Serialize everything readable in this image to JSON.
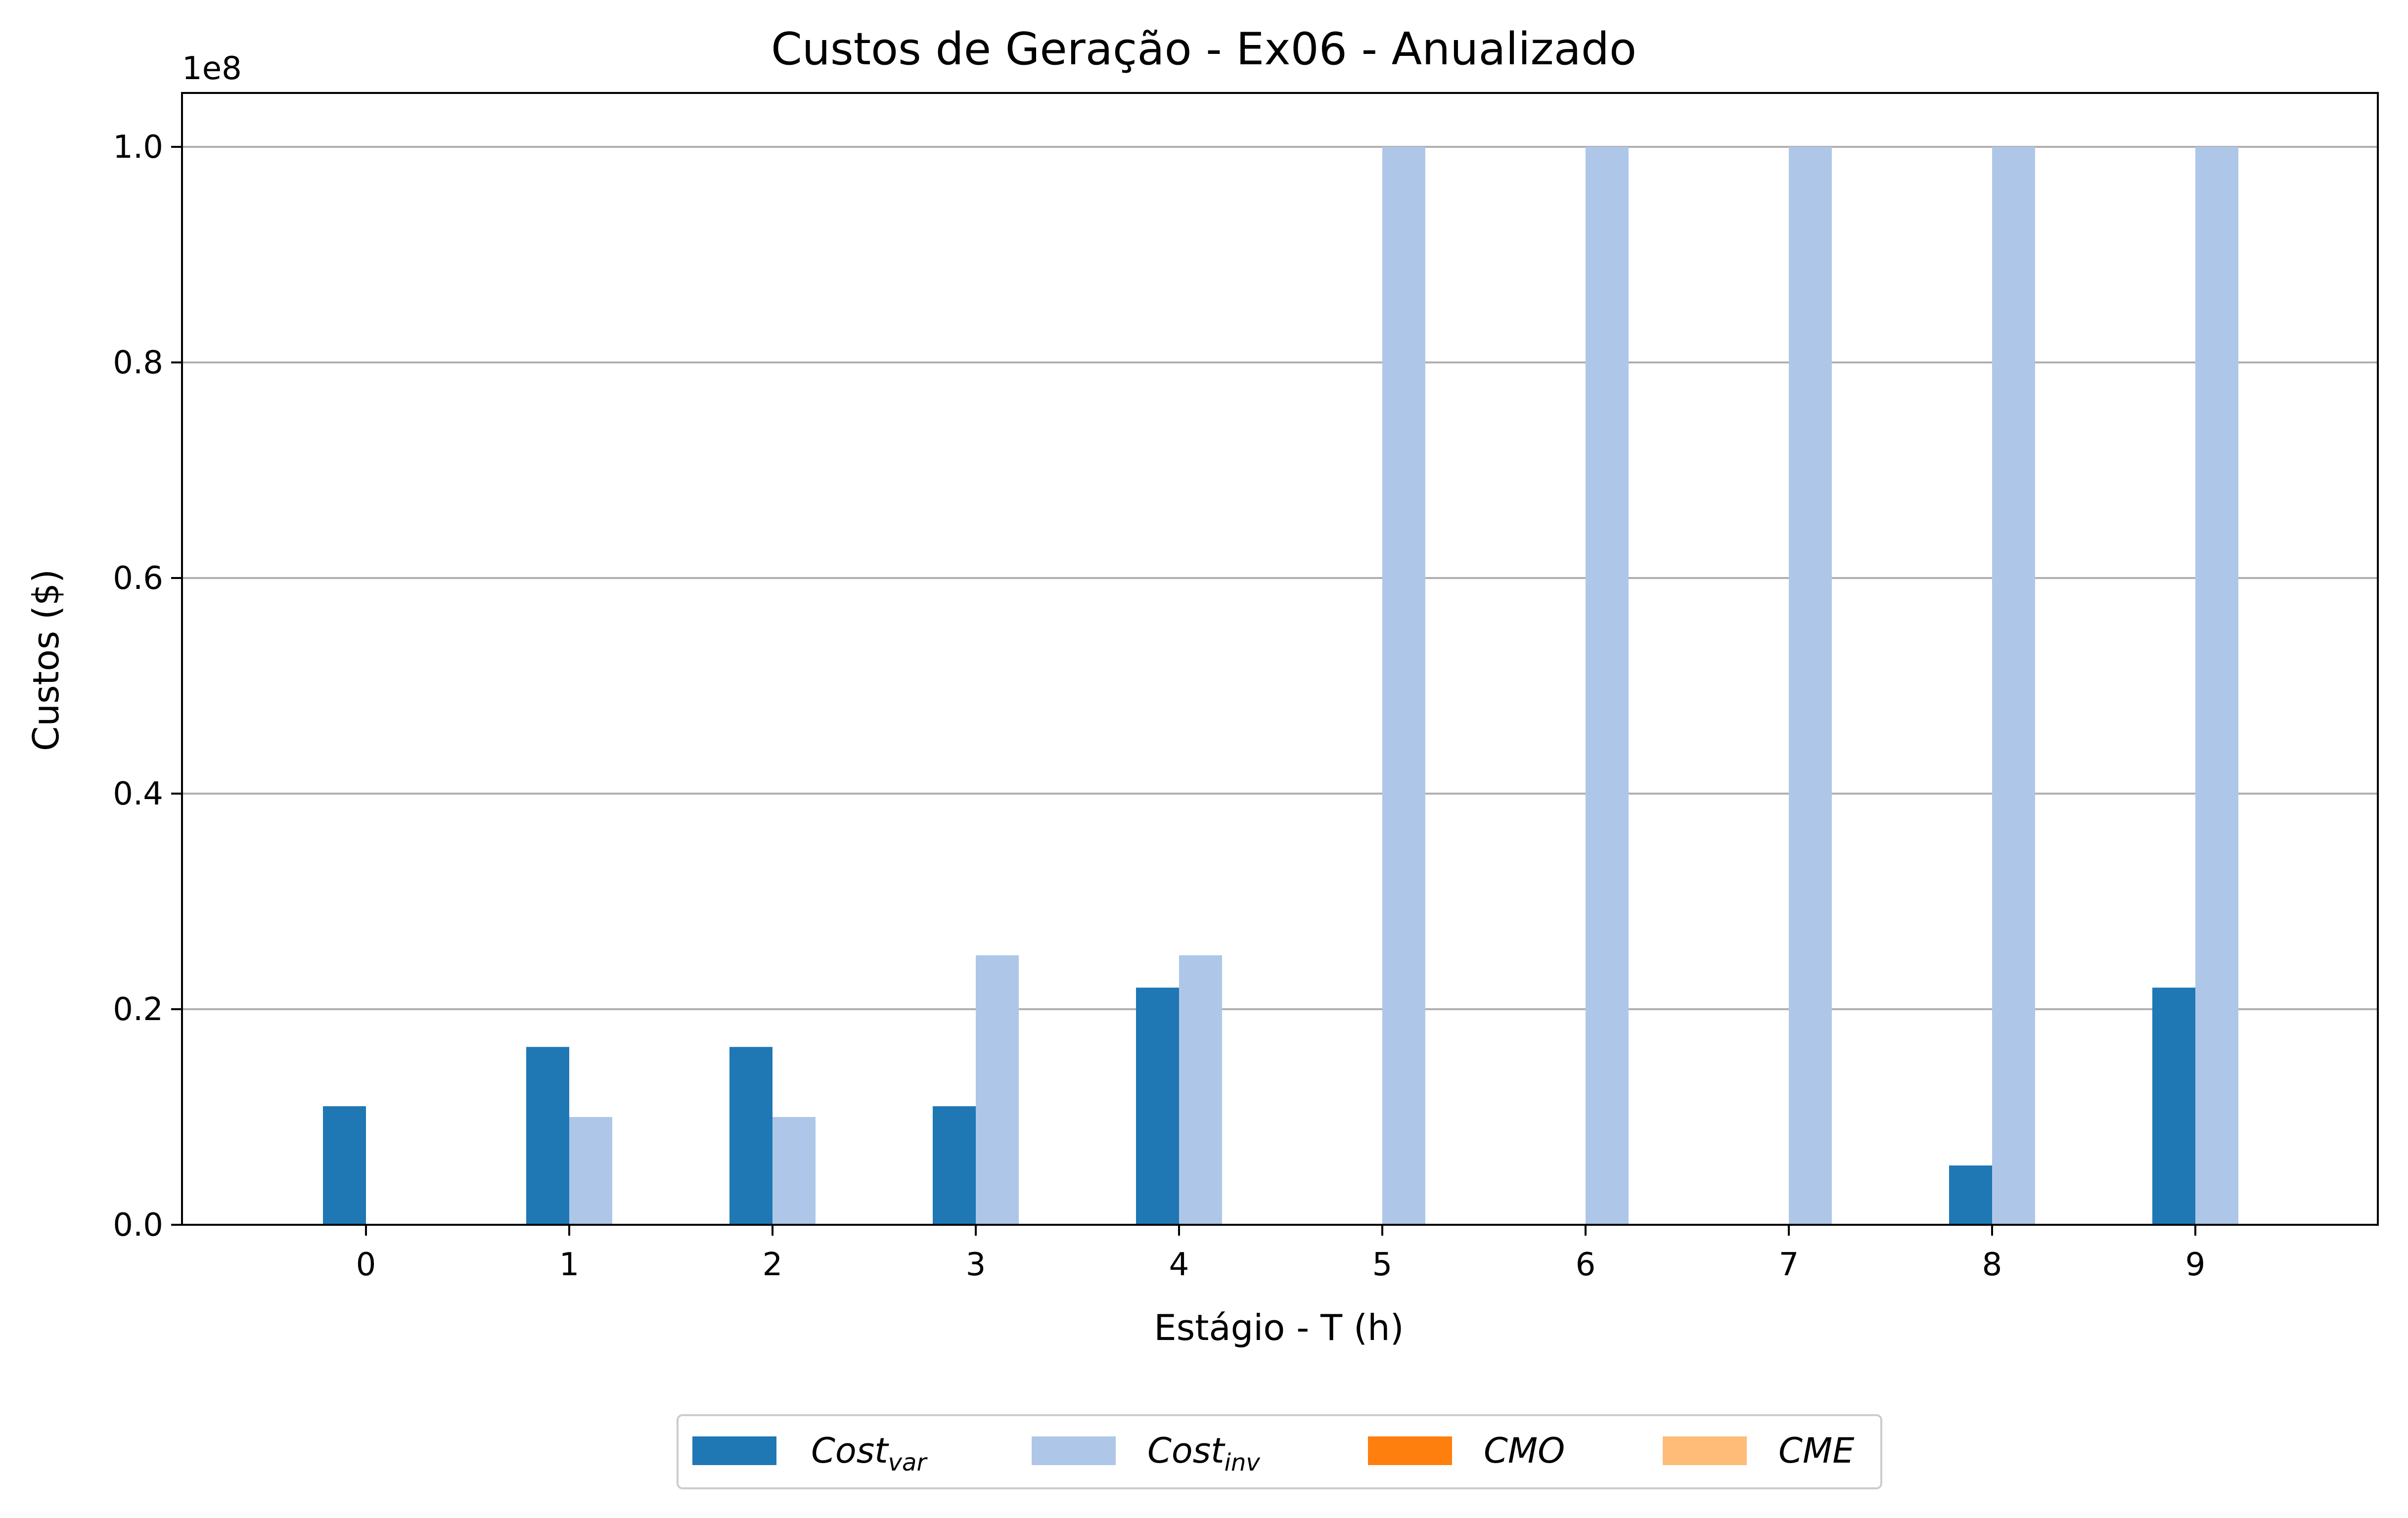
{
  "chart_data": {
    "type": "bar",
    "title": "Custos de Geração - Ex06 - Anualizado",
    "xlabel": "Estágio - T (h)",
    "ylabel": "Custos ($)",
    "y_scale_label": "1e8",
    "categories": [
      "0",
      "1",
      "2",
      "3",
      "4",
      "5",
      "6",
      "7",
      "8",
      "9"
    ],
    "ylim": [
      0,
      105000000
    ],
    "y_ticks": [
      0,
      20000000,
      40000000,
      60000000,
      80000000,
      100000000
    ],
    "y_tick_labels": [
      "0.0",
      "0.2",
      "0.4",
      "0.6",
      "0.8",
      "1.0"
    ],
    "grid": "y",
    "legend_position": "bottom-center",
    "series": [
      {
        "name": "Cost",
        "subscript": "var",
        "color": "#1f77b4",
        "values": [
          11000000,
          16500000,
          16500000,
          11000000,
          22000000,
          0,
          0,
          0,
          5500000,
          22000000
        ]
      },
      {
        "name": "Cost",
        "subscript": "inv",
        "color": "#aec7e8",
        "values": [
          0,
          10000000,
          10000000,
          25000000,
          25000000,
          100000000,
          100000000,
          100000000,
          100000000,
          100000000
        ]
      },
      {
        "name": "CMO",
        "subscript": "",
        "color": "#ff7f0e",
        "values": [
          0,
          0,
          0,
          0,
          0,
          0,
          0,
          0,
          0,
          0
        ]
      },
      {
        "name": "CME",
        "subscript": "",
        "color": "#ffbb78",
        "values": [
          0,
          0,
          0,
          0,
          0,
          0,
          0,
          0,
          0,
          0
        ]
      }
    ]
  }
}
